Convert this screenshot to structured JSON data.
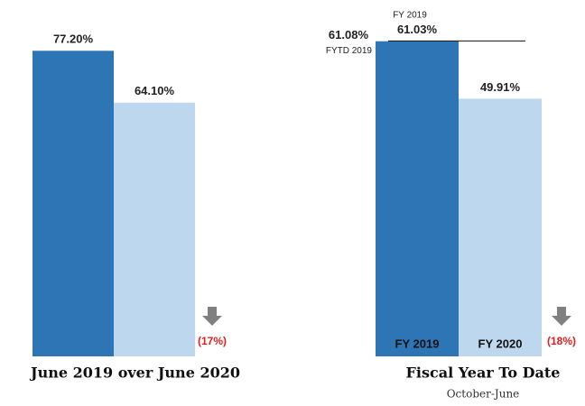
{
  "chart_data": [
    {
      "type": "bar",
      "title": "June 2019 over June 2020",
      "categories": [
        null,
        null
      ],
      "values": [
        77.2,
        64.1
      ],
      "value_labels": [
        "77.20%",
        "64.10%"
      ],
      "colors": [
        "#2e75b6",
        "#bdd7ee"
      ],
      "annotation": "(17%)",
      "ylim": [
        0,
        80
      ]
    },
    {
      "type": "bar",
      "title": "Fiscal Year To Date",
      "subtitle": "October-June",
      "categories": [
        "FY 2019",
        "FY 2020"
      ],
      "values": [
        61.03,
        49.91
      ],
      "value_labels": [
        "61.03%",
        "49.91%"
      ],
      "top_label": "FY 2019",
      "colors": [
        "#2e75b6",
        "#bdd7ee"
      ],
      "reference_line": {
        "label": "FYTD 2019",
        "value": 61.08,
        "value_label": "61.08%"
      },
      "annotation": "(18%)",
      "ylim": [
        0,
        65
      ]
    }
  ]
}
